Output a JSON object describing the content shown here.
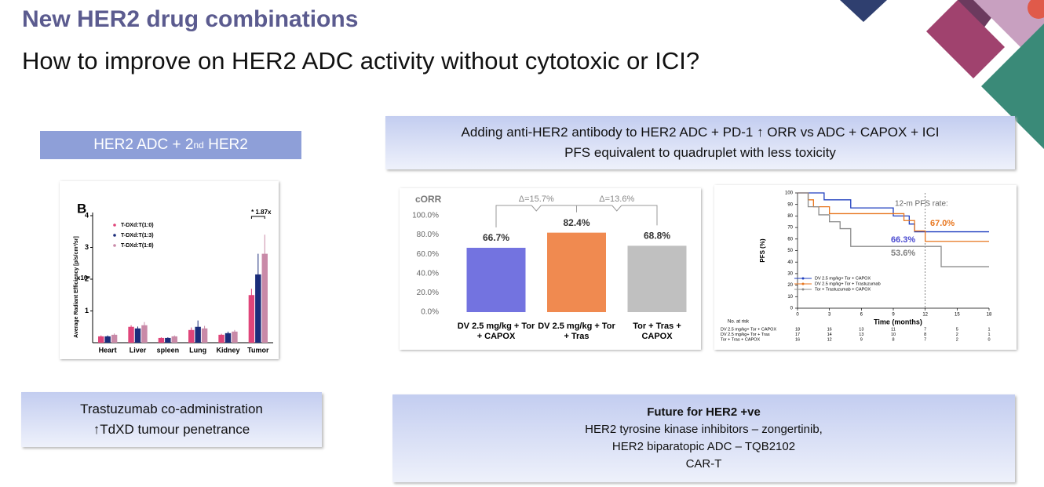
{
  "header": {
    "title": "New HER2 drug combinations",
    "subtitle": "How to improve on HER2 ADC activity without cytotoxic or ICI?"
  },
  "left_label": {
    "before": "HER2 ADC + 2",
    "sup": "nd",
    "after": " HER2"
  },
  "top_box": {
    "lines": [
      "Adding anti-HER2 antibody to HER2 ADC + PD-1 ↑ ORR  vs ADC + CAPOX + ICI",
      "PFS equivalent to quadruplet with less toxicity"
    ]
  },
  "bottom_left_box": {
    "lines": [
      "Trastuzumab co-administration",
      "↑TdXD tumour penetrance"
    ]
  },
  "bottom_right_box": {
    "title": "Future for HER2 +ve",
    "lines": [
      "HER2 tyrosine kinase inhibitors – zongertinib,",
      "HER2 biparatopic ADC – TQB2102",
      "CAR-T"
    ]
  },
  "chart_data": [
    {
      "type": "grouped-bar",
      "title": "B",
      "ylabel": "Average Radiant Efficiency [p/s/cm²/sr]",
      "scale_note": "x10⁸",
      "annotation": "* 1.87x",
      "categories": [
        "Heart",
        "Liver",
        "spleen",
        "Lung",
        "Kidney",
        "Tumor"
      ],
      "ylim": [
        0,
        4
      ],
      "yticks": [
        1,
        2,
        3,
        4
      ],
      "legend": "upper left",
      "series": [
        {
          "name": "T-DXd:T(1:0)",
          "color": "#e0457a",
          "values": [
            0.2,
            0.5,
            0.15,
            0.4,
            0.25,
            1.5
          ],
          "errors": [
            0.03,
            0.05,
            0.02,
            0.08,
            0.03,
            0.2
          ]
        },
        {
          "name": "T-DXd:T(1:3)",
          "color": "#1b2d7a",
          "values": [
            0.2,
            0.45,
            0.15,
            0.5,
            0.3,
            2.15
          ],
          "errors": [
            0.03,
            0.06,
            0.02,
            0.2,
            0.05,
            0.65
          ]
        },
        {
          "name": "T-DXd:T(1:8)",
          "color": "#c98aa8",
          "values": [
            0.25,
            0.55,
            0.2,
            0.45,
            0.35,
            2.8
          ],
          "errors": [
            0.04,
            0.1,
            0.03,
            0.08,
            0.05,
            0.6
          ]
        }
      ]
    },
    {
      "type": "bar",
      "ylabel": "cORR",
      "categories": [
        "DV 2.5 mg/kg + Tor + CAPOX",
        "DV 2.5 mg/kg + Tor + Tras",
        "Tor + Tras + CAPOX"
      ],
      "values": [
        66.7,
        82.4,
        68.8
      ],
      "value_labels": [
        "66.7%",
        "82.4%",
        "68.8%"
      ],
      "colors": [
        "#7373e0",
        "#f08a50",
        "#c0c0c0"
      ],
      "deltas": [
        "Δ=15.7%",
        "Δ=13.6%"
      ],
      "ylim": [
        0,
        100
      ],
      "yticks": [
        {
          "value": 0,
          "label": "0.0%"
        },
        {
          "value": 20,
          "label": "20.0%"
        },
        {
          "value": 40,
          "label": "40.0%"
        },
        {
          "value": 60,
          "label": "60.0%"
        },
        {
          "value": 80,
          "label": "80.0%"
        },
        {
          "value": 100,
          "label": "100.0%"
        }
      ]
    },
    {
      "type": "step-line",
      "xlabel": "Time (months)",
      "ylabel": "PFS (%)",
      "xlim": [
        0,
        18
      ],
      "xticks": [
        0,
        3,
        6,
        9,
        12,
        15,
        18
      ],
      "ylim": [
        0,
        100
      ],
      "yticks": [
        0,
        10,
        20,
        30,
        40,
        50,
        60,
        70,
        80,
        90,
        100
      ],
      "vline": 12,
      "legend": "lower left",
      "annotations": [
        {
          "text": "12-m PFS rate:",
          "color": "#666666"
        },
        {
          "text": "67.0%",
          "color": "#e8761e"
        },
        {
          "text": "66.3%",
          "color": "#4a4ad0"
        },
        {
          "text": "53.6%",
          "color": "#808080"
        }
      ],
      "series": [
        {
          "name": "DV 2.5 mg/kg+ Tor + CAPOX",
          "color": "#1f3fbf",
          "x": [
            0,
            2.5,
            5,
            9,
            10.5,
            11,
            18
          ],
          "values": [
            100,
            94,
            87,
            80,
            73,
            66.3,
            66.3
          ]
        },
        {
          "name": "DV 2.5 mg/kg+ Tor + Trastuzumab",
          "color": "#e8761e",
          "x": [
            0,
            1,
            1.5,
            3,
            10,
            11,
            12,
            18
          ],
          "values": [
            100,
            94,
            88,
            82,
            76,
            67,
            58,
            58
          ]
        },
        {
          "name": "Tor + Trastuzumab + CAPOX",
          "color": "#8c8c8c",
          "x": [
            0,
            1,
            2,
            3,
            4,
            5,
            13.5,
            18
          ],
          "values": [
            100,
            88,
            81,
            75,
            69,
            53.6,
            36,
            36
          ]
        }
      ],
      "risk_table": {
        "title": "No. at risk",
        "rows": [
          {
            "label": "DV 2.5 mg/kg+ Tor + CAPOX",
            "counts": [
              18,
              16,
              13,
              11,
              7,
              5,
              1
            ]
          },
          {
            "label": "DV 2.5 mg/kg+ Tor + Tras",
            "counts": [
              17,
              14,
              13,
              10,
              8,
              2,
              1
            ]
          },
          {
            "label": "Tor + Tras + CAPOX",
            "counts": [
              16,
              12,
              9,
              8,
              7,
              2,
              0
            ]
          }
        ]
      }
    }
  ]
}
